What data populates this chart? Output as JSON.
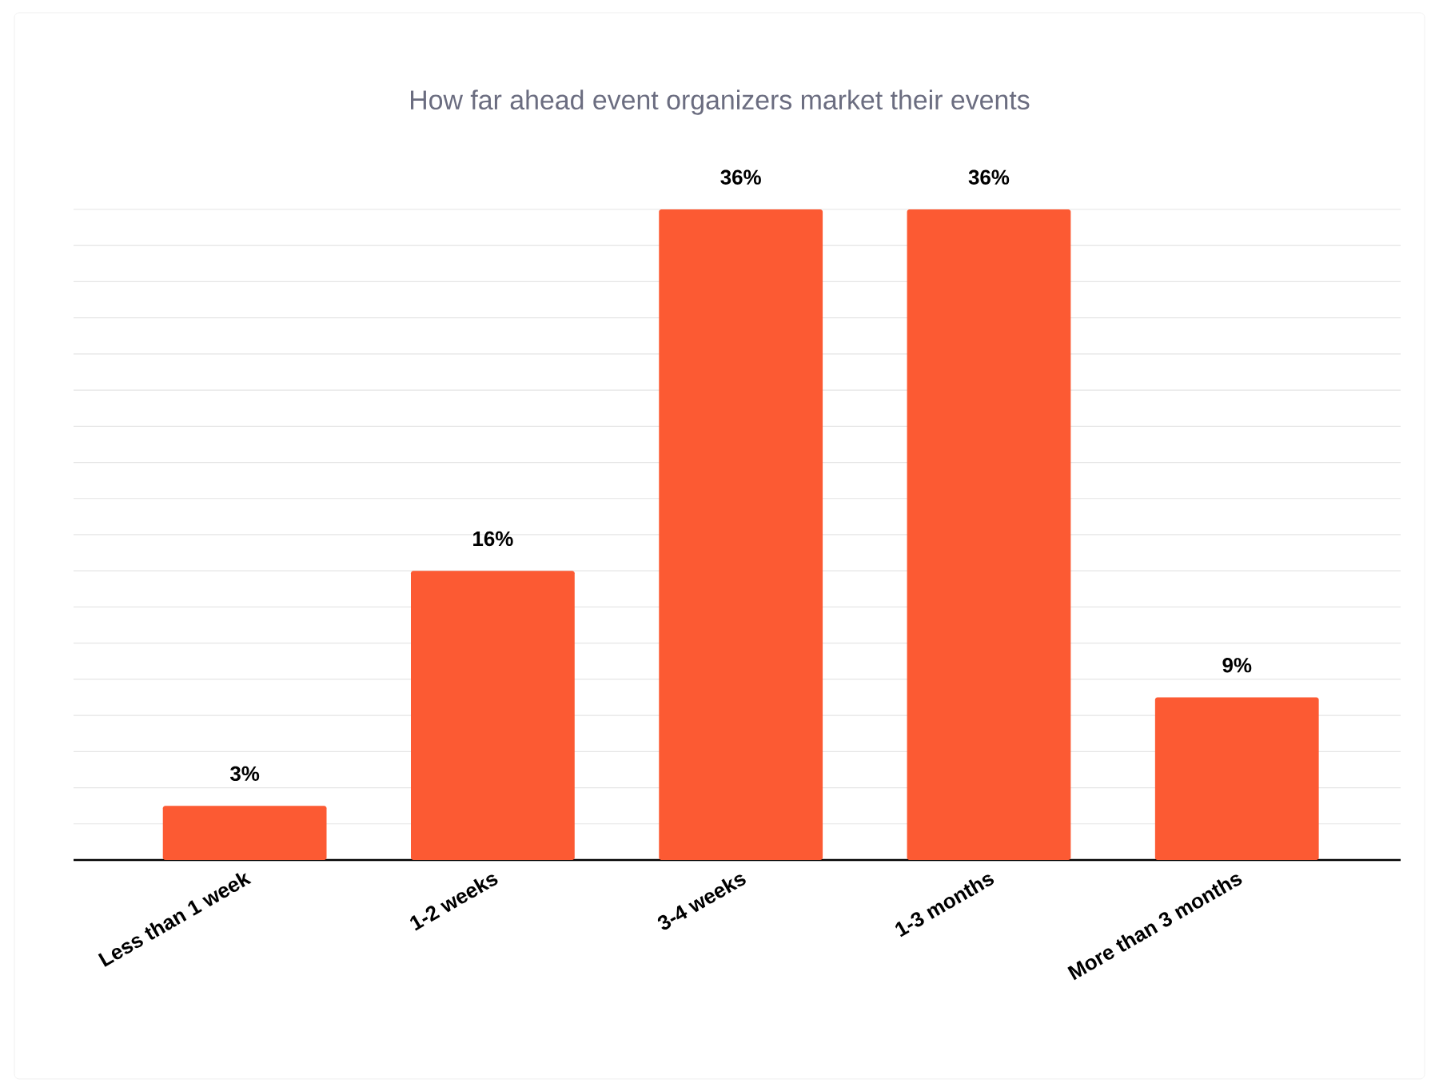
{
  "chart_data": {
    "type": "bar",
    "title": "How far ahead event organizers market their events",
    "categories": [
      "Less than 1 week",
      "1-2 weeks",
      "3-4 weeks",
      "1-3 months",
      "More than 3 months"
    ],
    "values": [
      3,
      16,
      36,
      36,
      9
    ],
    "value_labels": [
      "3%",
      "16%",
      "36%",
      "36%",
      "9%"
    ],
    "color": "#fc5a33",
    "grid": "y",
    "tick_labels": "x"
  }
}
